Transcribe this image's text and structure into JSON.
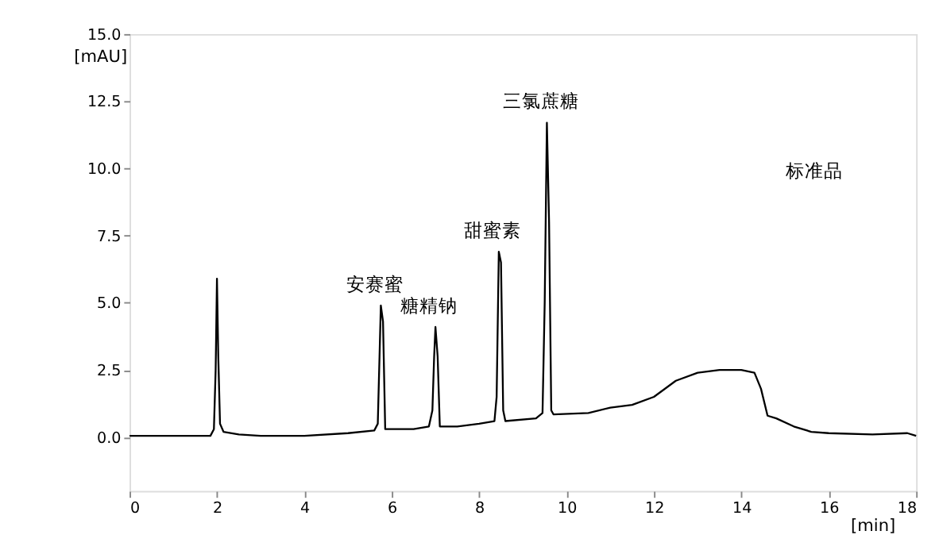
{
  "chart_data": {
    "type": "line",
    "xlabel": "[min]",
    "ylabel": "[mAU]",
    "x": [
      0,
      1.85,
      1.93,
      1.97,
      2.0,
      2.03,
      2.07,
      2.15,
      2.5,
      3,
      4,
      5,
      5.6,
      5.68,
      5.72,
      5.75,
      5.8,
      5.85,
      6.5,
      6.85,
      6.93,
      6.97,
      7.0,
      7.05,
      7.1,
      7.5,
      8.0,
      8.35,
      8.4,
      8.45,
      8.5,
      8.55,
      8.6,
      9.3,
      9.45,
      9.5,
      9.55,
      9.6,
      9.65,
      9.7,
      10.5,
      11,
      11.5,
      12,
      12.5,
      13,
      13.5,
      14,
      14.3,
      14.45,
      14.6,
      14.8,
      15.2,
      15.6,
      16,
      17,
      17.8,
      18
    ],
    "series": [
      {
        "color": "#000000",
        "values": [
          0.05,
          0.05,
          0.3,
          2.5,
          5.9,
          3,
          0.5,
          0.2,
          0.1,
          0.05,
          0.05,
          0.15,
          0.25,
          0.5,
          3,
          4.9,
          4.3,
          0.3,
          0.3,
          0.4,
          1,
          3,
          4.1,
          3,
          0.4,
          0.4,
          0.5,
          0.6,
          1.5,
          6.9,
          6.5,
          1.0,
          0.6,
          0.7,
          0.9,
          5,
          11.7,
          8,
          1,
          0.85,
          0.9,
          1.1,
          1.2,
          1.5,
          2.1,
          2.4,
          2.5,
          2.5,
          2.4,
          1.8,
          0.8,
          0.7,
          0.4,
          0.2,
          0.15,
          0.1,
          0.15,
          0.05
        ]
      }
    ],
    "xlim": [
      0,
      18
    ],
    "xticks": [
      0,
      2,
      4,
      6,
      8,
      10,
      12,
      14,
      16,
      18
    ],
    "ylim": [
      -2,
      15
    ],
    "yticks": [
      {
        "value": 0,
        "label": "0.0"
      },
      {
        "value": 2.5,
        "label": "2.5"
      },
      {
        "value": 5,
        "label": "5.0"
      },
      {
        "value": 7.5,
        "label": "7.5"
      },
      {
        "value": 10,
        "label": "10.0"
      },
      {
        "value": 12.5,
        "label": "12.5"
      },
      {
        "value": 15,
        "label": "15.0"
      }
    ],
    "grid": false,
    "line_style": "solid",
    "marker": "none",
    "annotations": [
      {
        "text": "安赛蜜",
        "x": 5.75,
        "y": 4.9
      },
      {
        "text": "糖精钠",
        "x": 7.0,
        "y": 4.1
      },
      {
        "text": "甜蜜素",
        "x": 8.45,
        "y": 6.9
      },
      {
        "text": "三氯蔗糖",
        "x": 9.55,
        "y": 11.7
      },
      "标准品"
    ]
  }
}
